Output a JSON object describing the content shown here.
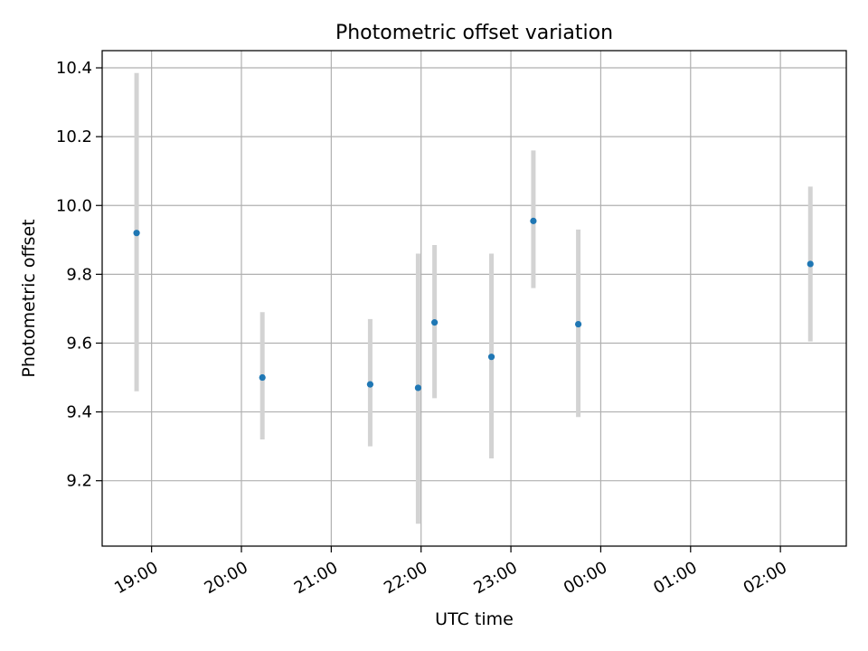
{
  "chart_data": {
    "type": "scatter",
    "title": "Photometric offset variation",
    "xlabel": "UTC time",
    "ylabel": "Photometric offset",
    "x_axis_type": "time",
    "xlim": [
      "18:27",
      "02:44"
    ],
    "ylim": [
      9.01,
      10.45
    ],
    "grid": true,
    "x_ticks": [
      "19:00",
      "20:00",
      "21:00",
      "22:00",
      "23:00",
      "00:00",
      "01:00",
      "02:00"
    ],
    "y_ticks": [
      9.2,
      9.4,
      9.6,
      9.8,
      10.0,
      10.2,
      10.4
    ],
    "points": [
      {
        "time": "18:50",
        "value": 9.92,
        "lower": 9.46,
        "upper": 10.385
      },
      {
        "time": "20:14",
        "value": 9.5,
        "lower": 9.32,
        "upper": 9.69
      },
      {
        "time": "21:26",
        "value": 9.48,
        "lower": 9.3,
        "upper": 9.67
      },
      {
        "time": "21:58",
        "value": 9.47,
        "lower": 9.075,
        "upper": 9.86
      },
      {
        "time": "22:09",
        "value": 9.66,
        "lower": 9.44,
        "upper": 9.885
      },
      {
        "time": "22:47",
        "value": 9.56,
        "lower": 9.265,
        "upper": 9.86
      },
      {
        "time": "23:15",
        "value": 9.955,
        "lower": 9.76,
        "upper": 10.16
      },
      {
        "time": "23:45",
        "value": 9.655,
        "lower": 9.385,
        "upper": 9.93
      },
      {
        "time": "02:20",
        "value": 9.83,
        "lower": 9.605,
        "upper": 10.055
      }
    ],
    "colors": {
      "point": "#1f77b4",
      "errorbar": "#d3d3d3",
      "grid": "#b0b0b0",
      "axis": "#000000"
    }
  }
}
